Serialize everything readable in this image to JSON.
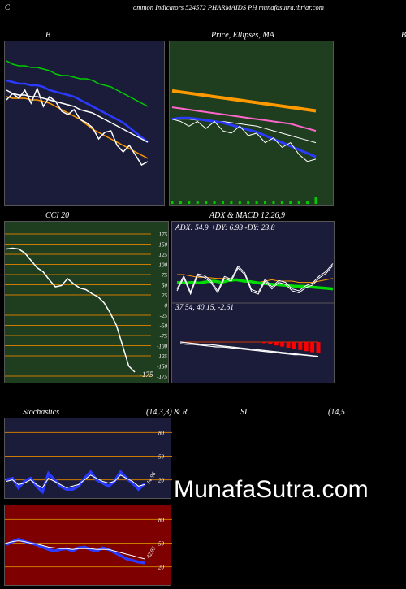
{
  "header": {
    "left_char": "C",
    "title": "ommon  Indicators 524572  PHARMAIDS PH munafasutra.tbrjar.com"
  },
  "colors": {
    "navy": "#1b1b3a",
    "green_panel": "#1f3d1f",
    "red_panel": "#7f0000",
    "orange": "#ff9900",
    "blue": "#2a3bff",
    "white": "#ffffff",
    "green_line": "#00cc00"
  },
  "watermark": "MunafaSutra.com",
  "chart_data": [
    {
      "id": "bollinger",
      "type": "line",
      "title": "B",
      "series": [
        {
          "color": "#00cc00",
          "values": [
            88,
            86,
            85,
            85,
            84,
            84,
            83,
            82,
            80,
            79,
            79,
            78,
            77,
            77,
            76,
            74,
            73,
            72,
            70,
            68,
            66,
            64,
            62,
            60
          ]
        },
        {
          "color": "#2a3bff",
          "values": [
            76,
            75,
            74,
            74,
            73,
            73,
            72,
            70,
            69,
            68,
            67,
            66,
            64,
            62,
            60,
            58,
            56,
            54,
            52,
            50,
            47,
            44,
            41,
            38
          ]
        },
        {
          "color": "#ffffff",
          "values": [
            70,
            68,
            67,
            67,
            66,
            66,
            65,
            64,
            63,
            62,
            61,
            60,
            58,
            57,
            56,
            54,
            52,
            50,
            48,
            46,
            44,
            42,
            40,
            38
          ]
        },
        {
          "color": "#ff9900",
          "values": [
            66,
            65,
            65,
            65,
            64,
            64,
            63,
            62,
            60,
            58,
            56,
            54,
            52,
            49,
            46,
            44,
            42,
            40,
            38,
            36,
            34,
            32,
            30,
            28
          ]
        },
        {
          "color": "#ffffff",
          "values": [
            64,
            68,
            65,
            70,
            62,
            71,
            60,
            66,
            63,
            57,
            55,
            58,
            52,
            50,
            47,
            40,
            44,
            45,
            36,
            32,
            36,
            30,
            24,
            26
          ]
        }
      ]
    },
    {
      "id": "price_ma",
      "type": "line",
      "title": "Price,  Ellipses,  MA",
      "series": [
        {
          "color": "#ff9900",
          "values": [
            96,
            95,
            94,
            93,
            92,
            91,
            90,
            89,
            88,
            87,
            86,
            85,
            84,
            83,
            82,
            81,
            80,
            79
          ]
        },
        {
          "color": "#ff66cc",
          "values": [
            82,
            81,
            80,
            79,
            78,
            77,
            76,
            75,
            74,
            73,
            72,
            71,
            70,
            69,
            68,
            66,
            64,
            62
          ]
        },
        {
          "color": "#ffffff",
          "values": [
            72,
            72,
            72,
            71,
            71,
            70,
            70,
            69,
            68,
            67,
            66,
            64,
            62,
            60,
            58,
            56,
            54,
            52
          ]
        },
        {
          "color": "#2a3bff",
          "values": [
            72,
            73,
            73,
            72,
            71,
            70,
            69,
            67,
            65,
            63,
            61,
            58,
            55,
            52,
            49,
            46,
            43,
            40
          ]
        },
        {
          "color": "#ffffff",
          "values": [
            72,
            70,
            66,
            70,
            64,
            70,
            62,
            60,
            66,
            58,
            60,
            52,
            56,
            48,
            52,
            42,
            36,
            38
          ]
        }
      ],
      "volume": [
        1,
        1,
        1,
        1,
        1,
        1,
        1,
        1,
        1,
        1,
        1,
        1,
        1,
        1,
        1,
        1,
        1,
        3
      ]
    },
    {
      "id": "cci",
      "type": "line",
      "title": "CCI 20",
      "ylabels": [
        "175",
        "150",
        "125",
        "100",
        "75",
        "50",
        "25",
        "0",
        "-25",
        "-50",
        "-75",
        "-100",
        "-125",
        "-150",
        "-175"
      ],
      "ylim": [
        -175,
        175
      ],
      "values": [
        138,
        140,
        138,
        128,
        110,
        92,
        82,
        62,
        45,
        48,
        65,
        52,
        42,
        38,
        28,
        20,
        5,
        -20,
        -50,
        -100,
        -150,
        -165
      ],
      "last_label": "-175"
    },
    {
      "id": "adx",
      "type": "line",
      "title": "ADX  & MACD 12,26,9",
      "adx_text": "ADX: 54.9 +DY: 6.93 -DY: 23.8",
      "ylim": [
        0,
        100
      ],
      "series": [
        {
          "color": "#00dd00",
          "values": [
            28,
            27,
            28,
            27,
            29,
            30,
            28,
            31,
            32,
            30,
            29,
            27,
            26,
            25,
            24,
            23,
            22,
            22,
            21,
            20,
            19,
            18
          ]
        },
        {
          "color": "#ffffff",
          "values": [
            15,
            35,
            10,
            38,
            36,
            28,
            12,
            34,
            30,
            50,
            40,
            14,
            10,
            30,
            18,
            28,
            25,
            15,
            12,
            20,
            24,
            35,
            42,
            54
          ]
        },
        {
          "color": "#ff9900",
          "values": [
            40,
            40,
            38,
            36,
            36,
            35,
            34,
            34,
            33,
            32,
            30,
            30,
            28,
            30,
            32,
            30,
            30,
            30,
            28,
            28,
            28,
            30,
            32,
            34
          ]
        }
      ]
    },
    {
      "id": "macd",
      "type": "bar",
      "title": "",
      "macd_text": "37.54,  40.15,  -2.61",
      "bars": [
        0,
        0,
        0,
        0,
        0,
        0,
        0,
        0,
        0,
        0,
        0,
        0,
        0,
        0,
        -1,
        -2,
        -3,
        -4,
        -5,
        -6,
        -7,
        -8,
        -9,
        -10
      ],
      "series": [
        {
          "color": "#ffffff",
          "values": [
            0,
            -1,
            -2,
            -3,
            -4,
            -4,
            -5,
            -6,
            -7,
            -8,
            -9,
            -10,
            -11,
            -12,
            -13,
            -14,
            -15,
            -16,
            -17,
            -18,
            -19,
            -20,
            -21,
            -22
          ]
        },
        {
          "color": "#ffffff",
          "values": [
            0,
            -1,
            -1,
            -2,
            -3,
            -4,
            -5,
            -5,
            -6,
            -7,
            -8,
            -9,
            -10,
            -11,
            -12,
            -13,
            -14,
            -15,
            -16,
            -17,
            -17,
            -18,
            -19,
            -20
          ]
        }
      ]
    },
    {
      "id": "stochastics",
      "type": "line",
      "title": "Stochastics",
      "params": "(14,3,3) & R",
      "ylabels": [
        "80",
        "50",
        "20"
      ],
      "ylim": [
        0,
        100
      ],
      "last_label": "14.96",
      "series": [
        {
          "color": "#2a3bff",
          "values": [
            20,
            22,
            10,
            18,
            22,
            12,
            5,
            28,
            20,
            12,
            8,
            8,
            12,
            22,
            30,
            20,
            16,
            12,
            18,
            30,
            22,
            16,
            8,
            15
          ]
        },
        {
          "color": "#ffffff",
          "values": [
            18,
            20,
            14,
            16,
            20,
            14,
            10,
            22,
            18,
            14,
            10,
            12,
            14,
            20,
            26,
            22,
            18,
            16,
            18,
            26,
            22,
            18,
            12,
            14
          ]
        }
      ]
    },
    {
      "id": "rsi",
      "type": "line",
      "title": "SI",
      "params": "(14,5",
      "ylabels": [
        "80",
        "50",
        "20"
      ],
      "ylim": [
        0,
        100
      ],
      "last_label": "42.93",
      "series": [
        {
          "color": "#2a3bff",
          "values": [
            48,
            52,
            55,
            52,
            50,
            48,
            45,
            42,
            40,
            42,
            43,
            40,
            44,
            45,
            42,
            40,
            44,
            42,
            38,
            34,
            30,
            28,
            26,
            25
          ]
        },
        {
          "color": "#ffffff",
          "values": [
            50,
            52,
            53,
            52,
            50,
            49,
            47,
            45,
            44,
            43,
            43,
            42,
            43,
            43,
            43,
            42,
            42,
            42,
            40,
            38,
            36,
            34,
            32,
            30
          ]
        }
      ]
    }
  ]
}
